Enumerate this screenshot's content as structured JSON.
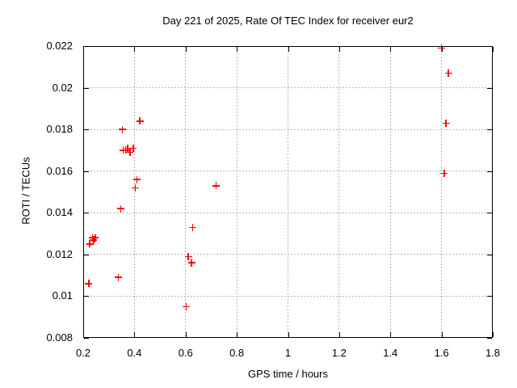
{
  "chart_data": {
    "type": "scatter",
    "title": "Day 221 of 2025, Rate Of TEC Index for receiver eur2",
    "xlabel": "GPS time / hours",
    "ylabel": "ROTI / TECUs",
    "xlim": [
      0.2,
      1.8
    ],
    "ylim": [
      0.008,
      0.022
    ],
    "x_ticks": [
      0.2,
      0.4,
      0.6,
      0.8,
      1.0,
      1.2,
      1.4,
      1.6,
      1.8
    ],
    "x_tick_labels": [
      "0.2",
      "0.4",
      "0.6",
      "0.8",
      "1",
      "1.2",
      "1.4",
      "1.6",
      "1.8"
    ],
    "y_ticks": [
      0.008,
      0.01,
      0.012,
      0.014,
      0.016,
      0.018,
      0.02,
      0.022
    ],
    "y_tick_labels": [
      "0.008",
      "0.01",
      "0.012",
      "0.014",
      "0.016",
      "0.018",
      "0.02",
      "0.022"
    ],
    "grid": true,
    "legend": "none",
    "marker": "plus",
    "colors": {
      "marker": "#ff0000",
      "grid": "#b5b5b5",
      "border": "#000000",
      "text": "#000000",
      "background": "#ffffff"
    },
    "series": [
      {
        "name": "ROTI",
        "points": [
          [
            0.222,
            0.0106
          ],
          [
            0.226,
            0.0125
          ],
          [
            0.236,
            0.0128
          ],
          [
            0.241,
            0.0127
          ],
          [
            0.247,
            0.0128
          ],
          [
            0.337,
            0.0109
          ],
          [
            0.346,
            0.0142
          ],
          [
            0.353,
            0.018
          ],
          [
            0.356,
            0.017
          ],
          [
            0.366,
            0.017
          ],
          [
            0.374,
            0.0171
          ],
          [
            0.383,
            0.0169
          ],
          [
            0.395,
            0.0171
          ],
          [
            0.403,
            0.0152
          ],
          [
            0.41,
            0.0156
          ],
          [
            0.421,
            0.0184
          ],
          [
            0.603,
            0.0095
          ],
          [
            0.611,
            0.0119
          ],
          [
            0.623,
            0.0116
          ],
          [
            0.627,
            0.0133
          ],
          [
            0.719,
            0.0153
          ],
          [
            1.6,
            0.0219
          ],
          [
            1.61,
            0.0159
          ],
          [
            1.617,
            0.0183
          ],
          [
            1.627,
            0.0207
          ]
        ]
      }
    ]
  }
}
